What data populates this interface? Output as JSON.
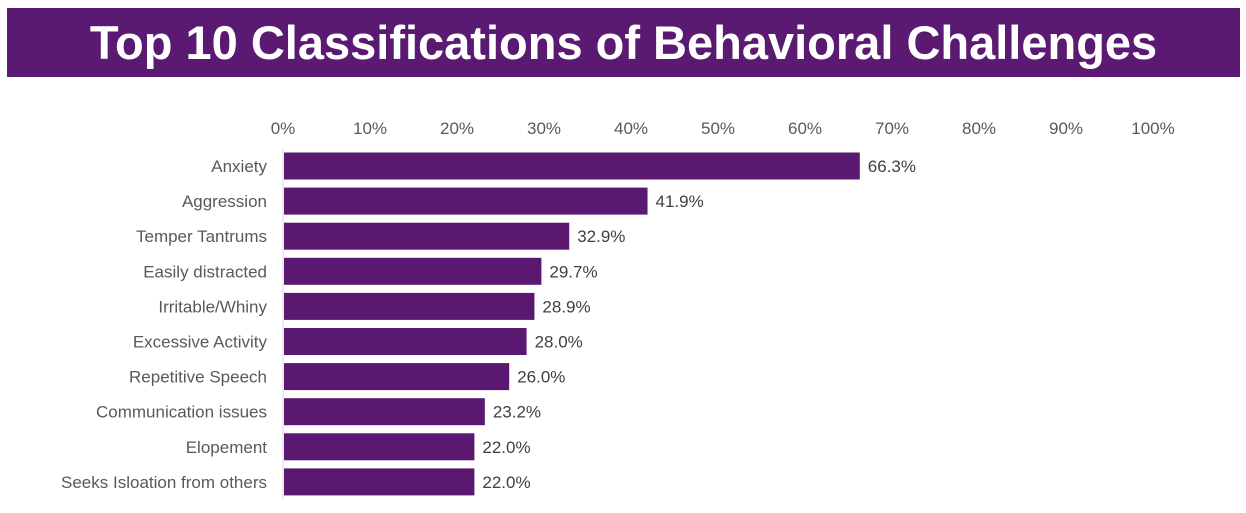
{
  "chart_data": {
    "type": "bar",
    "orientation": "horizontal",
    "title": "Top 10 Classifications of Behavioral Challenges",
    "categories": [
      "Anxiety",
      "Aggression",
      "Temper Tantrums",
      "Easily distracted",
      "Irritable/Whiny",
      "Excessive Activity",
      "Repetitive Speech",
      "Communication issues",
      "Elopement",
      "Seeks Isloation from others"
    ],
    "values": [
      66.3,
      41.9,
      32.9,
      29.7,
      28.9,
      28.0,
      26.0,
      23.2,
      22.0,
      22.0
    ],
    "value_labels": [
      "66.3%",
      "41.9%",
      "32.9%",
      "29.7%",
      "28.9%",
      "28.0%",
      "26.0%",
      "23.2%",
      "22.0%",
      "22.0%"
    ],
    "xlim": [
      0,
      100
    ],
    "x_ticks": [
      "0%",
      "10%",
      "20%",
      "30%",
      "40%",
      "50%",
      "60%",
      "70%",
      "80%",
      "90%",
      "100%"
    ],
    "x_axis_position": "top",
    "grid": false,
    "bar_color": "#5a1870",
    "title_band_color": "#5b1a72"
  }
}
